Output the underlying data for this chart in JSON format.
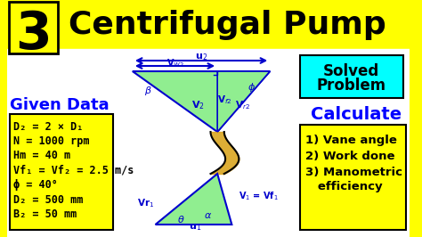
{
  "title": "Centrifugal Pump",
  "number": "3",
  "bg_color": "#FFFF00",
  "header_bg": "#FFFF00",
  "given_data_lines": [
    "D₂ = 2 × D₁",
    "N = 1000 rpm",
    "Hm = 40 m",
    "Vf₁ = Vf₂ = 2.5 m/s",
    "ϕ = 40°",
    "D₂ = 500 mm",
    "B₂ = 50 mm"
  ],
  "calculate_lines": [
    "1) Vane angle",
    "2) Work done",
    "3) Manometric",
    "   efficiency"
  ],
  "solved_problem_bg": "#00FFFF",
  "box_bg": "#FFFF00",
  "blue_color": "#0000FF",
  "dark_blue": "#00008B",
  "diagram_blue": "#0000CD",
  "vane_fill": "#90EE90",
  "pipe_fill_light": "#ADD8E6",
  "pipe_dark": "#8B4513",
  "pipe_gold": "#DAA520"
}
